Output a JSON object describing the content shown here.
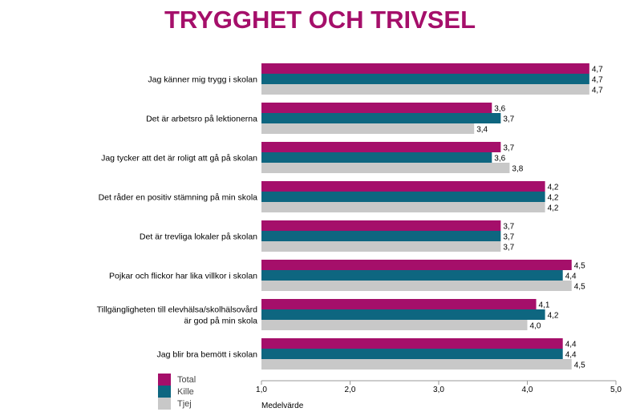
{
  "chart_data": {
    "type": "bar",
    "orientation": "horizontal",
    "title": "TRYGGHET OCH TRIVSEL",
    "xlabel": "Medelvärde",
    "xlim": [
      1.0,
      5.0
    ],
    "ticks": [
      "1,0",
      "2,0",
      "3,0",
      "4,0",
      "5,0"
    ],
    "tick_values": [
      1,
      2,
      3,
      4,
      5
    ],
    "categories": [
      [
        "Jag känner mig trygg i skolan"
      ],
      [
        "Det är arbetsro på lektionerna"
      ],
      [
        "Jag tycker att det är roligt att gå på skolan"
      ],
      [
        "Det råder en positiv stämning på min skola"
      ],
      [
        "Det är trevliga lokaler på skolan"
      ],
      [
        "Pojkar och flickor har lika villkor i skolan"
      ],
      [
        "Tillgängligheten till elevhälsa/skolhälsovård",
        "är god på min skola"
      ],
      [
        "Jag blir bra bemött i skolan"
      ]
    ],
    "series": [
      {
        "name": "Total",
        "color": "#a50f6a",
        "values": [
          4.7,
          3.6,
          3.7,
          4.2,
          3.7,
          4.5,
          4.1,
          4.4
        ],
        "labels": [
          "4,7",
          "3,6",
          "3,7",
          "4,2",
          "3,7",
          "4,5",
          "4,1",
          "4,4"
        ]
      },
      {
        "name": "Kille",
        "color": "#0e6680",
        "values": [
          4.7,
          3.7,
          3.6,
          4.2,
          3.7,
          4.4,
          4.2,
          4.4
        ],
        "labels": [
          "4,7",
          "3,7",
          "3,6",
          "4,2",
          "3,7",
          "4,4",
          "4,2",
          "4,4"
        ]
      },
      {
        "name": "Tjej",
        "color": "#c8c8c8",
        "values": [
          4.7,
          3.4,
          3.8,
          4.2,
          3.7,
          4.5,
          4.0,
          4.5
        ],
        "labels": [
          "4,7",
          "3,4",
          "3,8",
          "4,2",
          "3,7",
          "4,5",
          "4,0",
          "4,5"
        ]
      }
    ],
    "legend_position": "bottom-left",
    "grid": false
  }
}
